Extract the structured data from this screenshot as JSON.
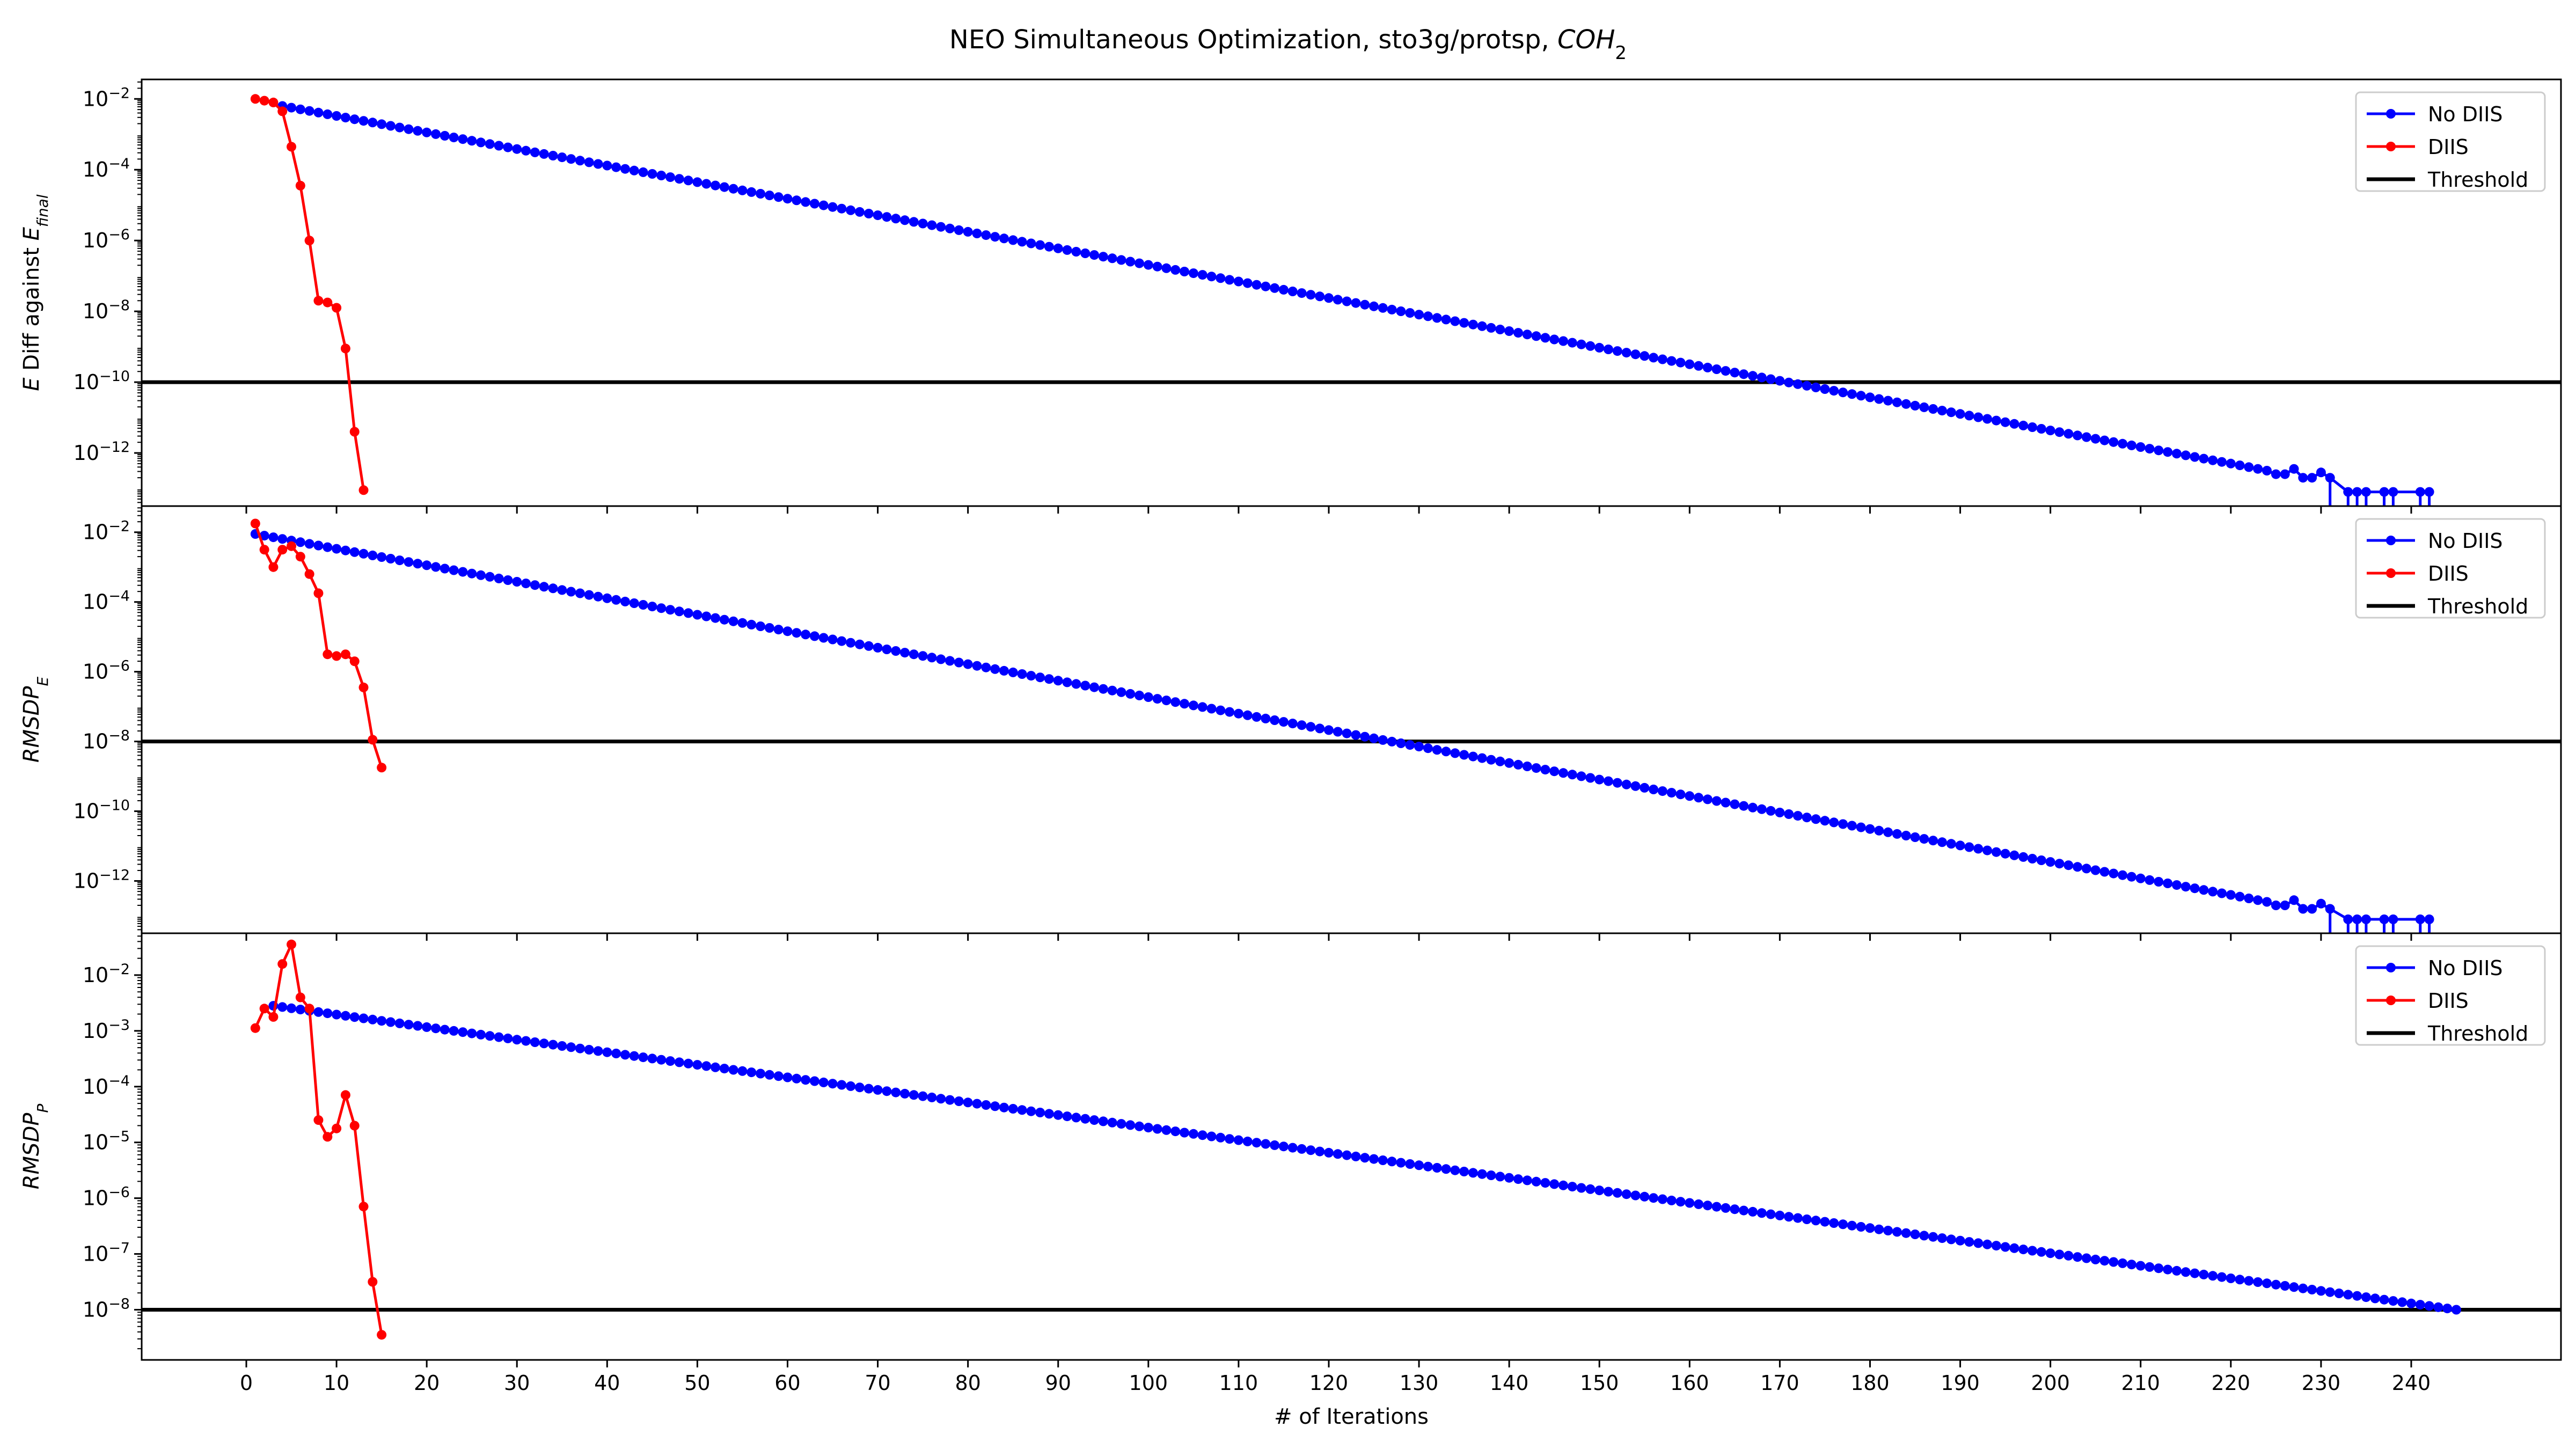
{
  "figure": {
    "title_main": "NEO Simultaneous Optimization, sto3g/protsp, ",
    "title_italic": "COH",
    "title_sub": "2",
    "xlabel": "# of Iterations"
  },
  "colors": {
    "no_diis": "#0000ff",
    "diis": "#ff0000",
    "threshold": "#000000"
  },
  "legend": {
    "no_diis": "No DIIS",
    "diis": "DIIS",
    "threshold": "Threshold"
  },
  "chart_data": [
    {
      "type": "line",
      "yscale": "log",
      "xlim": [
        -11.6,
        256.6
      ],
      "ylim_exp": [
        -13.5,
        -1.45
      ],
      "xticks": [
        0,
        10,
        20,
        30,
        40,
        50,
        60,
        70,
        80,
        90,
        100,
        110,
        120,
        130,
        140,
        150,
        160,
        170,
        180,
        190,
        200,
        210,
        220,
        230,
        240
      ],
      "yticks": [
        -12,
        -10,
        -8,
        -6,
        -4,
        -2
      ],
      "ylabel_base": "E",
      "ylabel_text": " Diff against ",
      "ylabel_var": "E",
      "ylabel_sub": "final",
      "legend_position": "top-right",
      "threshold": 1e-10,
      "series": [
        {
          "key": "no_diis",
          "name": "No DIIS",
          "start": {
            "x": 4,
            "log10y": -2.2
          },
          "end": {
            "x": 220,
            "log10y": -12.3
          },
          "tail": [
            [
              221,
              -12.35
            ],
            [
              222,
              -12.4
            ],
            [
              223,
              -12.45
            ],
            [
              224,
              -12.5
            ],
            [
              225,
              -12.6
            ],
            [
              226,
              -12.6
            ],
            [
              227,
              -12.45
            ],
            [
              228,
              -12.7
            ],
            [
              229,
              -12.7
            ],
            [
              230,
              -12.55
            ],
            [
              231,
              -12.7
            ],
            [
              233,
              -13.1
            ],
            [
              234,
              -13.1
            ],
            [
              235,
              -13.1
            ],
            [
              237,
              -13.1
            ],
            [
              238,
              -13.1
            ],
            [
              241,
              -13.1
            ],
            [
              242,
              -13.1
            ]
          ],
          "stems": [
            231,
            233,
            234,
            235,
            237,
            238,
            241,
            242
          ]
        },
        {
          "key": "diis",
          "name": "DIIS",
          "points": [
            [
              1,
              -2.0
            ],
            [
              2,
              -2.05
            ],
            [
              3,
              -2.1
            ],
            [
              4,
              -2.35
            ],
            [
              5,
              -3.35
            ],
            [
              6,
              -4.45
            ],
            [
              7,
              -6.0
            ],
            [
              8,
              -7.7
            ],
            [
              9,
              -7.75
            ],
            [
              10,
              -7.9
            ],
            [
              11,
              -9.05
            ],
            [
              12,
              -11.4
            ],
            [
              13,
              -13.05
            ]
          ]
        }
      ]
    },
    {
      "type": "line",
      "yscale": "log",
      "xlim": [
        -11.6,
        256.6
      ],
      "ylim_exp": [
        -13.5,
        -1.25
      ],
      "xticks": [
        0,
        10,
        20,
        30,
        40,
        50,
        60,
        70,
        80,
        90,
        100,
        110,
        120,
        130,
        140,
        150,
        160,
        170,
        180,
        190,
        200,
        210,
        220,
        230,
        240
      ],
      "yticks": [
        -12,
        -10,
        -8,
        -6,
        -4,
        -2
      ],
      "ylabel_base": "RMSDP",
      "ylabel_sub": "E",
      "legend_position": "top-right",
      "threshold": 1e-08,
      "series": [
        {
          "key": "no_diis",
          "name": "No DIIS",
          "start": {
            "x": 1,
            "log10y": -2.05
          },
          "end": {
            "x": 220,
            "log10y": -12.4
          },
          "tail": [
            [
              221,
              -12.45
            ],
            [
              222,
              -12.5
            ],
            [
              223,
              -12.55
            ],
            [
              224,
              -12.6
            ],
            [
              225,
              -12.7
            ],
            [
              226,
              -12.7
            ],
            [
              227,
              -12.55
            ],
            [
              228,
              -12.8
            ],
            [
              229,
              -12.8
            ],
            [
              230,
              -12.65
            ],
            [
              231,
              -12.8
            ],
            [
              233,
              -13.1
            ],
            [
              234,
              -13.1
            ],
            [
              235,
              -13.1
            ],
            [
              237,
              -13.1
            ],
            [
              238,
              -13.1
            ],
            [
              241,
              -13.1
            ],
            [
              242,
              -13.1
            ]
          ],
          "stems": [
            231,
            233,
            234,
            235,
            237,
            238,
            241,
            242
          ]
        },
        {
          "key": "diis",
          "name": "DIIS",
          "points": [
            [
              1,
              -1.75
            ],
            [
              2,
              -2.5
            ],
            [
              3,
              -3.0
            ],
            [
              4,
              -2.5
            ],
            [
              5,
              -2.4
            ],
            [
              6,
              -2.7
            ],
            [
              7,
              -3.2
            ],
            [
              8,
              -3.75
            ],
            [
              9,
              -5.5
            ],
            [
              10,
              -5.55
            ],
            [
              11,
              -5.5
            ],
            [
              12,
              -5.7
            ],
            [
              13,
              -6.45
            ],
            [
              14,
              -7.95
            ],
            [
              15,
              -8.75
            ]
          ]
        }
      ]
    },
    {
      "type": "line",
      "yscale": "log",
      "xlim": [
        -11.6,
        256.6
      ],
      "ylim_exp": [
        -8.9,
        -1.25
      ],
      "xticks": [
        0,
        10,
        20,
        30,
        40,
        50,
        60,
        70,
        80,
        90,
        100,
        110,
        120,
        130,
        140,
        150,
        160,
        170,
        180,
        190,
        200,
        210,
        220,
        230,
        240
      ],
      "yticks": [
        -8,
        -7,
        -6,
        -5,
        -4,
        -3,
        -2
      ],
      "ylabel_base": "RMSDP",
      "ylabel_sub": "P",
      "legend_position": "top-right",
      "threshold": 1e-08,
      "series": [
        {
          "key": "no_diis",
          "name": "No DIIS",
          "start": {
            "x": 3,
            "log10y": -2.55
          },
          "end": {
            "x": 245,
            "log10y": -8.0
          }
        },
        {
          "key": "diis",
          "name": "DIIS",
          "points": [
            [
              1,
              -2.95
            ],
            [
              2,
              -2.6
            ],
            [
              3,
              -2.75
            ],
            [
              4,
              -1.8
            ],
            [
              5,
              -1.45
            ],
            [
              6,
              -2.4
            ],
            [
              7,
              -2.6
            ],
            [
              8,
              -4.6
            ],
            [
              9,
              -4.9
            ],
            [
              10,
              -4.75
            ],
            [
              11,
              -4.15
            ],
            [
              12,
              -4.7
            ],
            [
              13,
              -6.15
            ],
            [
              14,
              -7.5
            ],
            [
              15,
              -8.45
            ]
          ]
        }
      ]
    }
  ]
}
